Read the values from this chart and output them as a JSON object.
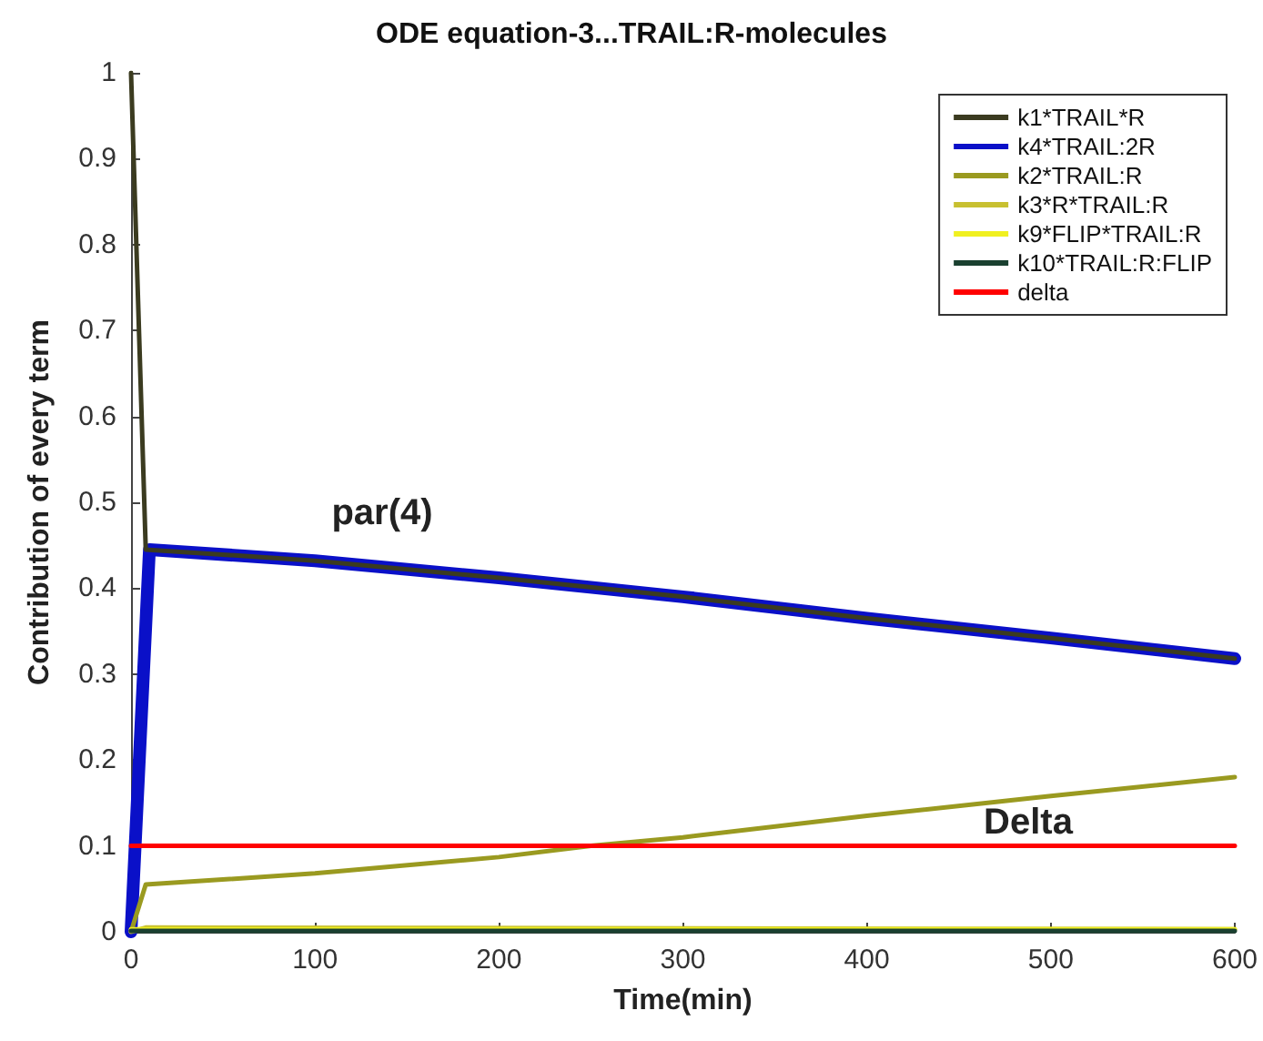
{
  "chart_data": {
    "type": "line",
    "title": "ODE equation-3...TRAIL:R-molecules",
    "xlabel": "Time(min)",
    "ylabel": "Contribution of every term",
    "xlim": [
      0,
      600
    ],
    "xticks": [
      0,
      100,
      200,
      300,
      400,
      500,
      600
    ],
    "ylim": [
      0,
      1
    ],
    "yticks": [
      0,
      0.1,
      0.2,
      0.3,
      0.4,
      0.5,
      0.6,
      0.7,
      0.8,
      0.9,
      1
    ],
    "grid": false,
    "legend": "top right",
    "marker": "none",
    "line_style": "solid",
    "series": [
      {
        "name": "k1*TRAIL*R",
        "color": "#3b3b20",
        "x": [
          0,
          8,
          100,
          200,
          300,
          400,
          500,
          600
        ],
        "values": [
          1,
          0.445,
          0.432,
          0.412,
          0.39,
          0.365,
          0.342,
          0.318
        ]
      },
      {
        "name": "k4*TRAIL:2R",
        "color": "#0a10c8",
        "x": [
          0,
          10,
          100,
          200,
          300,
          400,
          500,
          600
        ],
        "values": [
          0,
          0.445,
          0.432,
          0.412,
          0.39,
          0.365,
          0.342,
          0.318
        ]
      },
      {
        "name": "k2*TRAIL:R",
        "color": "#9a9a20",
        "x": [
          0,
          8,
          100,
          200,
          250,
          300,
          400,
          500,
          600
        ],
        "values": [
          0,
          0.055,
          0.068,
          0.087,
          0.1,
          0.11,
          0.135,
          0.158,
          0.18
        ]
      },
      {
        "name": "k3*R*TRAIL:R",
        "color": "#c8c030",
        "x": [
          0,
          8,
          600
        ],
        "values": [
          0,
          0.005,
          0.003
        ]
      },
      {
        "name": "k9*FLIP*TRAIL:R",
        "color": "#f0f020",
        "x": [
          0,
          600
        ],
        "values": [
          0.003,
          0.003
        ]
      },
      {
        "name": "k10*TRAIL:R:FLIP",
        "color": "#1a4030",
        "x": [
          0,
          600
        ],
        "values": [
          0.001,
          0.001
        ]
      },
      {
        "name": "delta",
        "color": "#ff0000",
        "x": [
          0,
          600
        ],
        "values": [
          0.1,
          0.1
        ]
      }
    ],
    "annotations": [
      "par(4)",
      "Delta"
    ]
  }
}
